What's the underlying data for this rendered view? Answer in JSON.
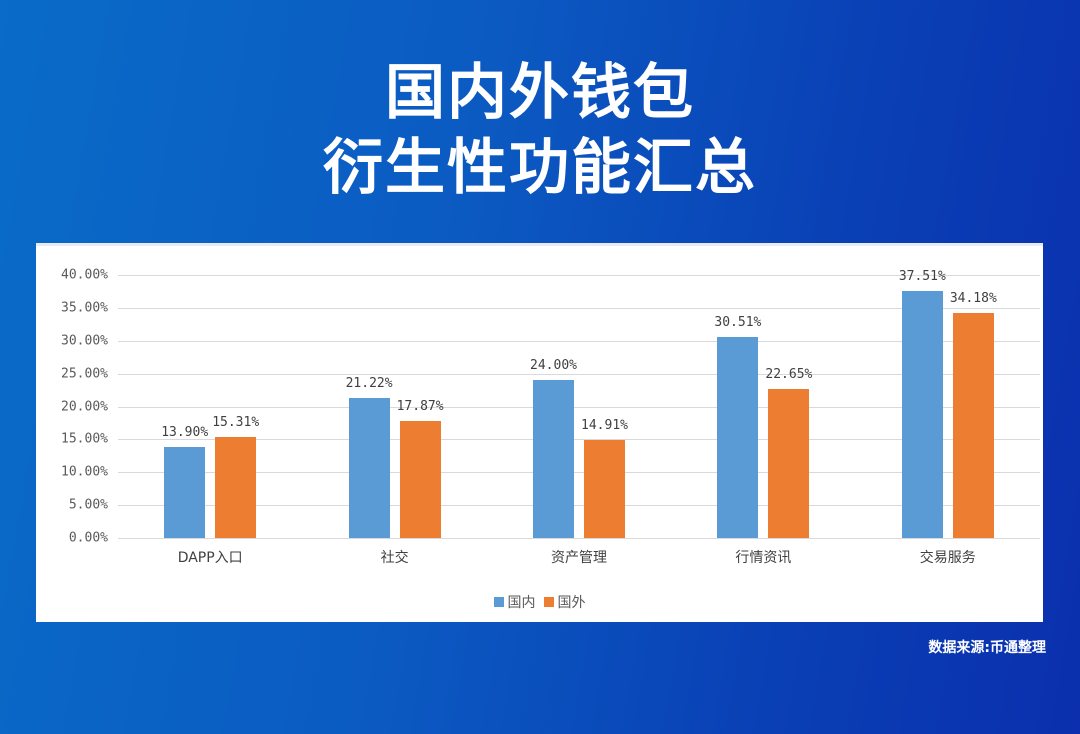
{
  "header": {
    "title_line1": "国内外钱包",
    "title_line2": "衍生性功能汇总"
  },
  "footer": {
    "source": "数据来源:币通整理"
  },
  "colors": {
    "domestic": "#5b9bd5",
    "foreign": "#ed7d31",
    "background": "#0b4fbf"
  },
  "chart_data": {
    "type": "bar",
    "title": "国内外钱包衍生性功能汇总",
    "xlabel": "",
    "ylabel": "",
    "ylim": [
      0,
      40
    ],
    "yticks": [
      "0.00%",
      "5.00%",
      "10.00%",
      "15.00%",
      "20.00%",
      "25.00%",
      "30.00%",
      "35.00%",
      "40.00%"
    ],
    "grid": true,
    "legend_position": "bottom",
    "categories": [
      "DAPP入口",
      "社交",
      "资产管理",
      "行情资讯",
      "交易服务"
    ],
    "series": [
      {
        "name": "国内",
        "values": [
          13.9,
          21.22,
          24.0,
          30.51,
          37.51
        ],
        "labels": [
          "13.90%",
          "21.22%",
          "24.00%",
          "30.51%",
          "37.51%"
        ]
      },
      {
        "name": "国外",
        "values": [
          15.31,
          17.87,
          14.91,
          22.65,
          34.18
        ],
        "labels": [
          "15.31%",
          "17.87%",
          "14.91%",
          "22.65%",
          "34.18%"
        ]
      }
    ]
  }
}
